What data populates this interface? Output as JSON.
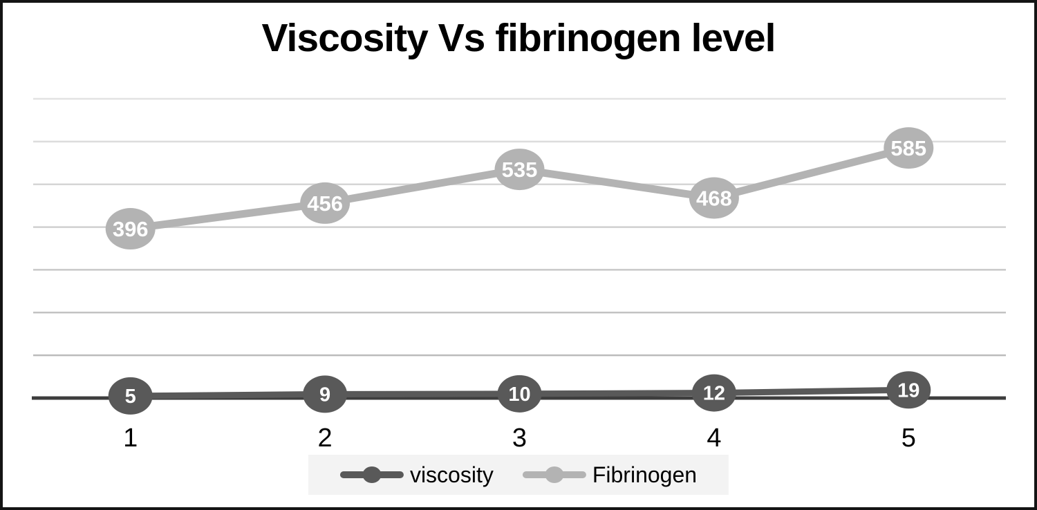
{
  "title": "Viscosity Vs fibrinogen level",
  "colors": {
    "viscosity_series": "#595959",
    "fibrinogen_series": "#b3b3b3",
    "axis_line": "#3d3d3d",
    "gridline_top": "#e2e2e2",
    "gridline_bottom": "#b5b5b5",
    "marker_label_text": "#ffffff",
    "legend_background": "#f3f3f3",
    "frame_border": "#141414",
    "title_text": "#000000"
  },
  "legend": {
    "position": "bottom",
    "items": [
      {
        "label": "viscosity",
        "color": "#595959"
      },
      {
        "label": "Fibrinogen",
        "color": "#b3b3b3"
      }
    ]
  },
  "chart_data": {
    "type": "line",
    "title": "Viscosity Vs fibrinogen level",
    "categories": [
      "1",
      "2",
      "3",
      "4",
      "5"
    ],
    "series": [
      {
        "name": "viscosity",
        "color": "#595959",
        "values": [
          5,
          9,
          10,
          12,
          19
        ]
      },
      {
        "name": "Fibrinogen",
        "color": "#b3b3b3",
        "values": [
          396,
          456,
          535,
          468,
          585
        ]
      }
    ],
    "xlabel": "",
    "ylabel": "",
    "ylim": [
      0,
      700
    ],
    "gridline_step": 100,
    "grid": true,
    "y_axis_tick_labels_visible": false,
    "data_labels": "inside-markers",
    "legend_position": "bottom"
  }
}
